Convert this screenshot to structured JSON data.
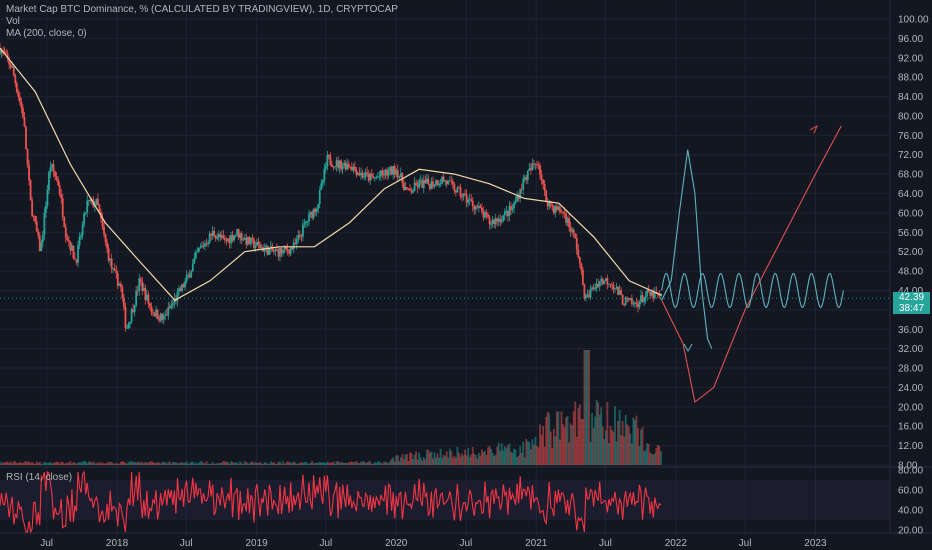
{
  "legend": {
    "line1": "Market Cap BTC Dominance, % (CALCULATED BY TRADINGVIEW), 1D, CRYPTOCAP",
    "line2": "Vol",
    "line3": "MA (200, close, 0)"
  },
  "rsi": {
    "label": "RSI (14, close)"
  },
  "price_tag": {
    "value": "42.39",
    "countdown": "38:47"
  },
  "colors": {
    "background": "#131722",
    "up": "#26a69a",
    "down": "#ef5350",
    "ma": "#f0d9a8",
    "rsi": "#f23645",
    "projection_teal": "#5fb3bf",
    "projection_red": "#e0524f",
    "grid": "#1f2330"
  },
  "chart_data": [
    {
      "type": "candlestick",
      "title": "Market Cap BTC Dominance, % (CALCULATED BY TRADINGVIEW), 1D, CRYPTOCAP",
      "ylabel": "%",
      "ylim": [
        8,
        100
      ],
      "yticks": [
        "100.00",
        "96.00",
        "92.00",
        "88.00",
        "84.00",
        "80.00",
        "76.00",
        "72.00",
        "68.00",
        "64.00",
        "60.00",
        "56.00",
        "52.00",
        "48.00",
        "44.00",
        "40.00",
        "36.00",
        "32.00",
        "28.00",
        "24.00",
        "20.00",
        "16.00",
        "12.00",
        "8.00"
      ],
      "xticks": [
        "Jul",
        "2018",
        "Jul",
        "2019",
        "Jul",
        "2020",
        "Jul",
        "2021",
        "Jul",
        "2022",
        "Jul",
        "2023"
      ],
      "xlim": [
        "2017-03-01",
        "2023-07-15"
      ],
      "close_series": {
        "dates": [
          "2017-03-01",
          "2017-04-01",
          "2017-05-01",
          "2017-05-20",
          "2017-06-15",
          "2017-07-10",
          "2017-08-01",
          "2017-08-20",
          "2017-09-15",
          "2017-10-15",
          "2017-11-10",
          "2017-12-01",
          "2017-12-20",
          "2018-01-10",
          "2018-01-25",
          "2018-02-10",
          "2018-03-01",
          "2018-04-01",
          "2018-05-01",
          "2018-06-01",
          "2018-07-01",
          "2018-08-01",
          "2018-09-10",
          "2018-10-10",
          "2018-11-10",
          "2018-12-10",
          "2019-01-10",
          "2019-02-10",
          "2019-03-10",
          "2019-04-10",
          "2019-05-10",
          "2019-06-10",
          "2019-07-05",
          "2019-08-01",
          "2019-09-01",
          "2019-10-01",
          "2019-11-01",
          "2019-12-01",
          "2020-01-01",
          "2020-02-01",
          "2020-03-01",
          "2020-04-01",
          "2020-05-01",
          "2020-06-01",
          "2020-07-01",
          "2020-08-01",
          "2020-09-01",
          "2020-10-01",
          "2020-11-01",
          "2020-12-01",
          "2021-01-05",
          "2021-01-25",
          "2021-02-15",
          "2021-03-15",
          "2021-04-15",
          "2021-05-10",
          "2021-05-25",
          "2021-06-15",
          "2021-07-15",
          "2021-08-15",
          "2021-09-15",
          "2021-10-15",
          "2021-11-10",
          "2021-11-25"
        ],
        "values": [
          94,
          90,
          80,
          62,
          52,
          70,
          66,
          56,
          50,
          62,
          62,
          54,
          48,
          45,
          36,
          40,
          46,
          40,
          38,
          42,
          46,
          52,
          56,
          54,
          56,
          54,
          53,
          52,
          52,
          53,
          58,
          62,
          71,
          70,
          70,
          68,
          67,
          68,
          69,
          64,
          66,
          66,
          67,
          65,
          63,
          61,
          58,
          59,
          61,
          67,
          71,
          63,
          61,
          60,
          54,
          42,
          44,
          46,
          46,
          42,
          41,
          43,
          43,
          42.4
        ]
      },
      "ma_series": {
        "name": "MA (200, close, 0)",
        "dates": [
          "2017-03-01",
          "2017-06-01",
          "2017-09-01",
          "2017-12-01",
          "2018-03-01",
          "2018-06-01",
          "2018-09-01",
          "2018-12-01",
          "2019-03-01",
          "2019-06-01",
          "2019-09-01",
          "2019-12-01",
          "2020-03-01",
          "2020-06-01",
          "2020-09-01",
          "2020-12-01",
          "2021-03-01",
          "2021-06-01",
          "2021-09-01",
          "2021-11-25"
        ],
        "values": [
          94,
          85,
          70,
          58,
          50,
          42,
          46,
          52,
          53,
          53,
          58,
          65,
          69,
          68,
          66,
          63,
          62,
          55,
          46,
          43
        ]
      },
      "projections": [
        {
          "dates": [
            "2021-11-25",
            "2021-12-20",
            "2022-01-10",
            "2022-02-01",
            "2022-02-20",
            "2022-03-10",
            "2022-03-25",
            "2022-04-05"
          ],
          "values": [
            42,
            46,
            60,
            73,
            64,
            44,
            34,
            32
          ]
        },
        {
          "dates": [
            "2021-11-25",
            "2021-12-20",
            "2022-01-20",
            "2022-02-20",
            "2022-04-10",
            "2022-07-01",
            "2022-10-01",
            "2023-01-01",
            "2023-03-10"
          ],
          "values": [
            42,
            38,
            33,
            21,
            24,
            40,
            54,
            68,
            78
          ]
        },
        {
          "type": "sine",
          "start": "2021-11-25",
          "end": "2023-03-15",
          "center": 44,
          "amplitude": 3.5,
          "periods": 10
        }
      ],
      "last_value": 42.39
    },
    {
      "type": "bar",
      "title": "Vol",
      "note": "volume histogram overlaid at bottom of price pane",
      "trend": "low through 2019, rising from 2020, peak May 2021"
    },
    {
      "type": "line",
      "title": "RSI (14, close)",
      "ylim": [
        20,
        80
      ],
      "yticks": [
        "80.00",
        "60.00",
        "40.00",
        "20.00"
      ],
      "band": [
        30,
        70
      ]
    }
  ]
}
